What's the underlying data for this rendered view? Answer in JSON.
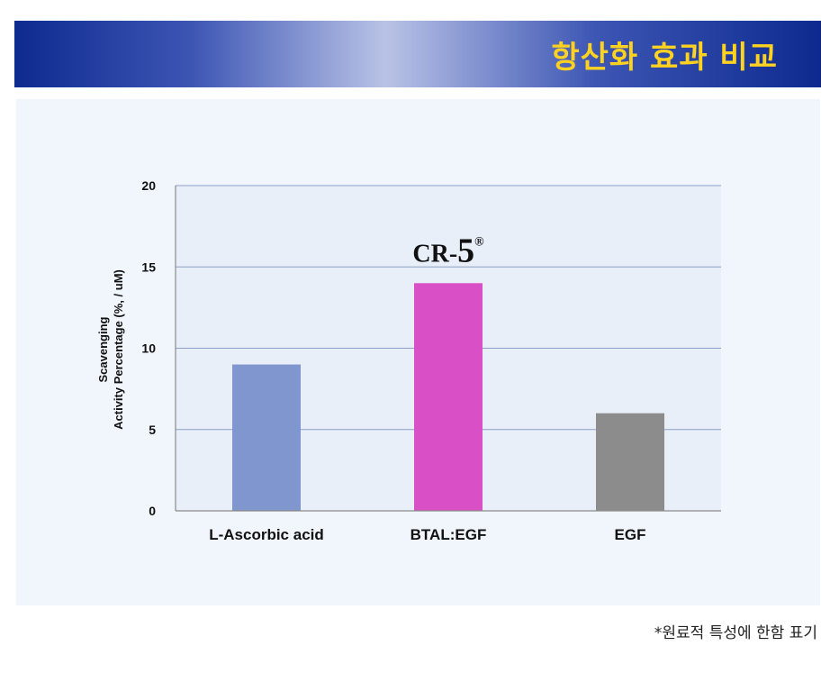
{
  "header": {
    "title": "항산화 효과 비교"
  },
  "footnote": "*원료적 특성에 한함 표기",
  "chart_data": {
    "type": "bar",
    "categories": [
      "L-Ascorbic acid",
      "BTAL:EGF",
      "EGF"
    ],
    "values": [
      9,
      14,
      6
    ],
    "bar_colors": [
      "#7f96ce",
      "#d94fc6",
      "#8c8c8c"
    ],
    "ylabel_line1": "Scavenging",
    "ylabel_line2": "Activity Percentage (%, / uM)",
    "ylim": [
      0,
      20
    ],
    "yticks": [
      0,
      5,
      10,
      15,
      20
    ],
    "grid": true,
    "annotation": {
      "prefix": "CR-",
      "number": "5",
      "mark": "®",
      "category": "BTAL:EGF"
    }
  }
}
